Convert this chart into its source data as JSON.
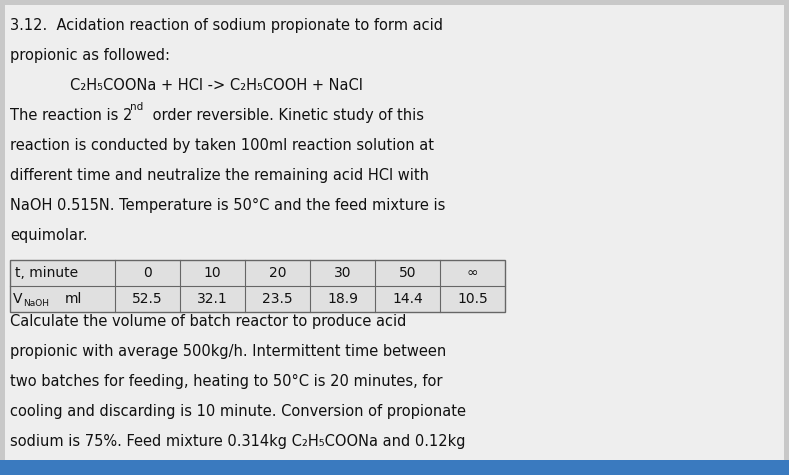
{
  "bg_color": "#c8c8c8",
  "inner_bg": "#f0f0f0",
  "text_color": "#111111",
  "table_headers": [
    "t, minute",
    "0",
    "10",
    "20",
    "30",
    "50",
    "∞"
  ],
  "table_row2_values": [
    "52.5",
    "32.1",
    "23.5",
    "18.9",
    "14.4",
    "10.5"
  ],
  "body_fontsize": 10.5,
  "table_fontsize": 10.0
}
